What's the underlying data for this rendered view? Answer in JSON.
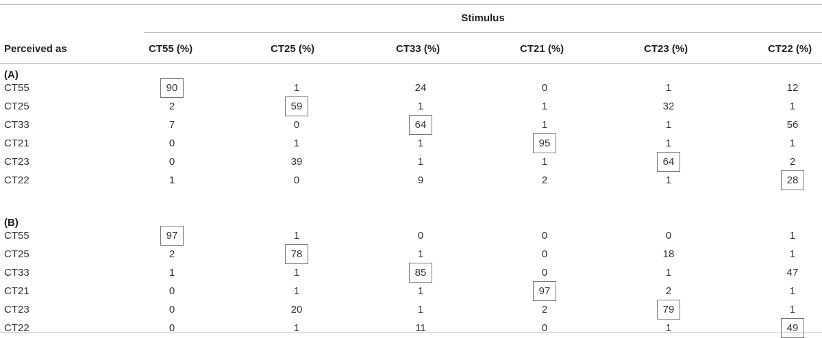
{
  "stimulus_label": "Stimulus",
  "row_header": "Perceived as",
  "columns": [
    "CT55 (%)",
    "CT25 (%)",
    "CT33 (%)",
    "CT21 (%)",
    "CT23 (%)",
    "CT22 (%)"
  ],
  "sections": [
    {
      "label": "(A)",
      "rows": [
        {
          "label": "CT55",
          "values": [
            "90",
            "1",
            "24",
            "0",
            "1",
            "12"
          ]
        },
        {
          "label": "CT25",
          "values": [
            "2",
            "59",
            "1",
            "1",
            "32",
            "1"
          ]
        },
        {
          "label": "CT33",
          "values": [
            "7",
            "0",
            "64",
            "1",
            "1",
            "56"
          ]
        },
        {
          "label": "CT21",
          "values": [
            "0",
            "1",
            "1",
            "95",
            "1",
            "1"
          ]
        },
        {
          "label": "CT23",
          "values": [
            "0",
            "39",
            "1",
            "1",
            "64",
            "2"
          ]
        },
        {
          "label": "CT22",
          "values": [
            "1",
            "0",
            "9",
            "2",
            "1",
            "28"
          ]
        }
      ]
    },
    {
      "label": "(B)",
      "rows": [
        {
          "label": "CT55",
          "values": [
            "97",
            "1",
            "0",
            "0",
            "0",
            "1"
          ]
        },
        {
          "label": "CT25",
          "values": [
            "2",
            "78",
            "1",
            "0",
            "18",
            "1"
          ]
        },
        {
          "label": "CT33",
          "values": [
            "1",
            "1",
            "85",
            "0",
            "1",
            "47"
          ]
        },
        {
          "label": "CT21",
          "values": [
            "0",
            "1",
            "1",
            "97",
            "2",
            "1"
          ]
        },
        {
          "label": "CT23",
          "values": [
            "0",
            "20",
            "1",
            "2",
            "79",
            "1"
          ]
        },
        {
          "label": "CT22",
          "values": [
            "0",
            "1",
            "11",
            "0",
            "1",
            "49"
          ]
        }
      ]
    }
  ]
}
